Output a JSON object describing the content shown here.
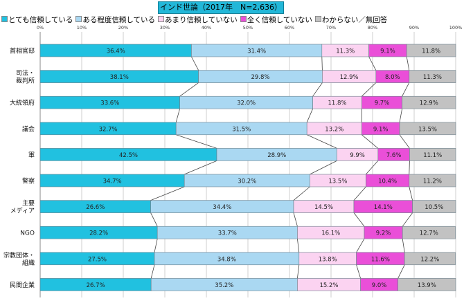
{
  "chart_data": {
    "type": "bar",
    "orientation": "horizontal",
    "stacked": true,
    "percent_stacked": true,
    "title": "インド世論（2017年　N=2,636）",
    "categories": [
      "首相官邸",
      "司法・\n裁判所",
      "大統領府",
      "議会",
      "軍",
      "警察",
      "主要\nメディア",
      "NGO",
      "宗教団体・\n組織",
      "民間企業"
    ],
    "series": [
      {
        "name": "とても信頼している",
        "color": "#21c1e0",
        "values": [
          36.4,
          38.1,
          33.6,
          32.7,
          42.5,
          34.7,
          26.6,
          28.2,
          27.5,
          26.7
        ]
      },
      {
        "name": "ある程度信頼している",
        "color": "#aad8f2",
        "values": [
          31.4,
          29.8,
          32.0,
          31.5,
          28.9,
          30.2,
          34.4,
          33.7,
          34.8,
          35.2
        ]
      },
      {
        "name": "あまり信頼していない",
        "color": "#fbd3f1",
        "values": [
          11.3,
          12.9,
          11.8,
          13.2,
          9.9,
          13.5,
          14.5,
          16.1,
          13.8,
          15.2
        ]
      },
      {
        "name": "全く信頼していない",
        "color": "#ea4fd8",
        "values": [
          9.1,
          8.0,
          9.7,
          9.1,
          7.6,
          10.4,
          14.1,
          9.2,
          11.6,
          9.0
        ]
      },
      {
        "name": "わからない／無回答",
        "color": "#c2c2c2",
        "values": [
          11.8,
          11.3,
          12.9,
          13.5,
          11.1,
          11.2,
          10.5,
          12.7,
          12.2,
          13.9
        ]
      }
    ],
    "value_suffix": "%",
    "xlim": [
      0,
      100
    ],
    "xticks": [
      "0%",
      "10%",
      "20%",
      "30%",
      "40%",
      "50%",
      "60%",
      "70%",
      "80%",
      "90%",
      "100%"
    ],
    "grid": true,
    "legend_position": "top",
    "series_connector_lines": true
  }
}
